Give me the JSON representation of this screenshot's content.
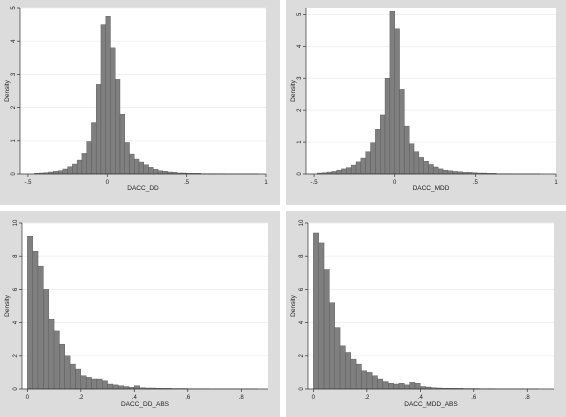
{
  "chart_data": [
    {
      "type": "bar",
      "histogram": true,
      "xlabel": "DACC_DD",
      "ylabel": "Density",
      "xlim": [
        -0.55,
        1.0
      ],
      "ylim": [
        0,
        5
      ],
      "xticks": [
        -0.5,
        0,
        0.5,
        1
      ],
      "xtick_labels": [
        "-.5",
        "0",
        ".5",
        "1"
      ],
      "yticks": [
        0,
        1,
        2,
        3,
        4,
        5
      ],
      "ytick_labels": [
        "0",
        "1",
        "2",
        "3",
        "4",
        "5"
      ],
      "grid": true,
      "bin_width": 0.03,
      "bins": [
        {
          "x0": -0.46,
          "v": 0.02
        },
        {
          "x0": -0.43,
          "v": 0.03
        },
        {
          "x0": -0.4,
          "v": 0.04
        },
        {
          "x0": -0.37,
          "v": 0.06
        },
        {
          "x0": -0.34,
          "v": 0.08
        },
        {
          "x0": -0.31,
          "v": 0.1
        },
        {
          "x0": -0.28,
          "v": 0.15
        },
        {
          "x0": -0.25,
          "v": 0.22
        },
        {
          "x0": -0.22,
          "v": 0.3
        },
        {
          "x0": -0.19,
          "v": 0.42
        },
        {
          "x0": -0.16,
          "v": 0.62
        },
        {
          "x0": -0.13,
          "v": 0.98
        },
        {
          "x0": -0.1,
          "v": 1.55
        },
        {
          "x0": -0.07,
          "v": 2.7
        },
        {
          "x0": -0.04,
          "v": 4.5
        },
        {
          "x0": -0.01,
          "v": 4.75
        },
        {
          "x0": 0.02,
          "v": 3.8
        },
        {
          "x0": 0.05,
          "v": 2.85
        },
        {
          "x0": 0.08,
          "v": 1.8
        },
        {
          "x0": 0.11,
          "v": 0.95
        },
        {
          "x0": 0.14,
          "v": 0.6
        },
        {
          "x0": 0.17,
          "v": 0.45
        },
        {
          "x0": 0.2,
          "v": 0.36
        },
        {
          "x0": 0.23,
          "v": 0.28
        },
        {
          "x0": 0.26,
          "v": 0.2
        },
        {
          "x0": 0.29,
          "v": 0.14
        },
        {
          "x0": 0.32,
          "v": 0.1
        },
        {
          "x0": 0.35,
          "v": 0.08
        },
        {
          "x0": 0.38,
          "v": 0.06
        },
        {
          "x0": 0.41,
          "v": 0.05
        },
        {
          "x0": 0.44,
          "v": 0.03
        },
        {
          "x0": 0.47,
          "v": 0.03
        },
        {
          "x0": 0.5,
          "v": 0.02
        },
        {
          "x0": 0.53,
          "v": 0.02
        },
        {
          "x0": 0.56,
          "v": 0.02
        },
        {
          "x0": 0.59,
          "v": 0.01
        },
        {
          "x0": 0.62,
          "v": 0.01
        },
        {
          "x0": 0.65,
          "v": 0.01
        },
        {
          "x0": 0.68,
          "v": 0.01
        },
        {
          "x0": 0.71,
          "v": 0.01
        },
        {
          "x0": 0.74,
          "v": 0.005
        },
        {
          "x0": 0.77,
          "v": 0.005
        },
        {
          "x0": 0.8,
          "v": 0.005
        },
        {
          "x0": 0.83,
          "v": 0.005
        },
        {
          "x0": 0.86,
          "v": 0.005
        },
        {
          "x0": 0.89,
          "v": 0.005
        },
        {
          "x0": 0.92,
          "v": 0.005
        }
      ]
    },
    {
      "type": "bar",
      "histogram": true,
      "xlabel": "DACC_MDD",
      "ylabel": "Density",
      "xlim": [
        -0.55,
        1.0
      ],
      "ylim": [
        0,
        5.2
      ],
      "xticks": [
        -0.5,
        0,
        0.5,
        1
      ],
      "xtick_labels": [
        "-.5",
        "0",
        ".5",
        "1"
      ],
      "yticks": [
        0,
        1,
        2,
        3,
        4,
        5
      ],
      "ytick_labels": [
        "0",
        "1",
        "2",
        "3",
        "4",
        "5"
      ],
      "grid": true,
      "bin_width": 0.03,
      "bins": [
        {
          "x0": -0.48,
          "v": 0.03
        },
        {
          "x0": -0.45,
          "v": 0.04
        },
        {
          "x0": -0.42,
          "v": 0.06
        },
        {
          "x0": -0.39,
          "v": 0.08
        },
        {
          "x0": -0.36,
          "v": 0.12
        },
        {
          "x0": -0.33,
          "v": 0.16
        },
        {
          "x0": -0.3,
          "v": 0.2
        },
        {
          "x0": -0.27,
          "v": 0.28
        },
        {
          "x0": -0.24,
          "v": 0.38
        },
        {
          "x0": -0.21,
          "v": 0.5
        },
        {
          "x0": -0.18,
          "v": 0.7
        },
        {
          "x0": -0.15,
          "v": 0.98
        },
        {
          "x0": -0.12,
          "v": 1.4
        },
        {
          "x0": -0.09,
          "v": 1.85
        },
        {
          "x0": -0.06,
          "v": 3.0
        },
        {
          "x0": -0.03,
          "v": 5.1
        },
        {
          "x0": 0.0,
          "v": 4.55
        },
        {
          "x0": 0.03,
          "v": 2.65
        },
        {
          "x0": 0.06,
          "v": 1.5
        },
        {
          "x0": 0.09,
          "v": 0.95
        },
        {
          "x0": 0.12,
          "v": 0.7
        },
        {
          "x0": 0.15,
          "v": 0.52
        },
        {
          "x0": 0.18,
          "v": 0.4
        },
        {
          "x0": 0.21,
          "v": 0.3
        },
        {
          "x0": 0.24,
          "v": 0.22
        },
        {
          "x0": 0.27,
          "v": 0.16
        },
        {
          "x0": 0.3,
          "v": 0.12
        },
        {
          "x0": 0.33,
          "v": 0.1
        },
        {
          "x0": 0.36,
          "v": 0.08
        },
        {
          "x0": 0.39,
          "v": 0.07
        },
        {
          "x0": 0.42,
          "v": 0.05
        },
        {
          "x0": 0.45,
          "v": 0.05
        },
        {
          "x0": 0.48,
          "v": 0.04
        },
        {
          "x0": 0.51,
          "v": 0.03
        },
        {
          "x0": 0.54,
          "v": 0.03
        },
        {
          "x0": 0.57,
          "v": 0.02
        },
        {
          "x0": 0.6,
          "v": 0.02
        },
        {
          "x0": 0.63,
          "v": 0.01
        },
        {
          "x0": 0.66,
          "v": 0.01
        },
        {
          "x0": 0.69,
          "v": 0.01
        },
        {
          "x0": 0.72,
          "v": 0.005
        },
        {
          "x0": 0.75,
          "v": 0.005
        },
        {
          "x0": 0.78,
          "v": 0.005
        },
        {
          "x0": 0.81,
          "v": 0.005
        },
        {
          "x0": 0.84,
          "v": 0.005
        },
        {
          "x0": 0.87,
          "v": 0.005
        }
      ]
    },
    {
      "type": "bar",
      "histogram": true,
      "xlabel": "DACC_DD_ABS",
      "ylabel": "Density",
      "xlim": [
        -0.02,
        0.9
      ],
      "ylim": [
        0,
        10
      ],
      "xticks": [
        0,
        0.2,
        0.4,
        0.6,
        0.8
      ],
      "xtick_labels": [
        "0",
        ".2",
        ".4",
        ".6",
        ".8"
      ],
      "yticks": [
        0,
        2,
        4,
        6,
        8,
        10
      ],
      "ytick_labels": [
        "0",
        "2",
        "4",
        "6",
        "8",
        "10"
      ],
      "grid": true,
      "bin_width": 0.02,
      "bins": [
        {
          "x0": 0.0,
          "v": 9.2
        },
        {
          "x0": 0.02,
          "v": 8.3
        },
        {
          "x0": 0.04,
          "v": 7.4
        },
        {
          "x0": 0.06,
          "v": 6.0
        },
        {
          "x0": 0.08,
          "v": 4.2
        },
        {
          "x0": 0.1,
          "v": 3.5
        },
        {
          "x0": 0.12,
          "v": 2.7
        },
        {
          "x0": 0.14,
          "v": 2.0
        },
        {
          "x0": 0.16,
          "v": 1.5
        },
        {
          "x0": 0.18,
          "v": 1.2
        },
        {
          "x0": 0.2,
          "v": 0.8
        },
        {
          "x0": 0.22,
          "v": 0.7
        },
        {
          "x0": 0.24,
          "v": 0.6
        },
        {
          "x0": 0.26,
          "v": 0.6
        },
        {
          "x0": 0.28,
          "v": 0.5
        },
        {
          "x0": 0.3,
          "v": 0.3
        },
        {
          "x0": 0.32,
          "v": 0.25
        },
        {
          "x0": 0.34,
          "v": 0.2
        },
        {
          "x0": 0.36,
          "v": 0.15
        },
        {
          "x0": 0.38,
          "v": 0.1
        },
        {
          "x0": 0.4,
          "v": 0.2
        },
        {
          "x0": 0.42,
          "v": 0.08
        },
        {
          "x0": 0.44,
          "v": 0.06
        },
        {
          "x0": 0.46,
          "v": 0.06
        },
        {
          "x0": 0.48,
          "v": 0.05
        },
        {
          "x0": 0.5,
          "v": 0.04
        },
        {
          "x0": 0.52,
          "v": 0.04
        },
        {
          "x0": 0.54,
          "v": 0.03
        },
        {
          "x0": 0.56,
          "v": 0.03
        },
        {
          "x0": 0.58,
          "v": 0.03
        },
        {
          "x0": 0.6,
          "v": 0.02
        },
        {
          "x0": 0.62,
          "v": 0.02
        },
        {
          "x0": 0.64,
          "v": 0.02
        },
        {
          "x0": 0.66,
          "v": 0.02
        },
        {
          "x0": 0.68,
          "v": 0.01
        },
        {
          "x0": 0.7,
          "v": 0.01
        },
        {
          "x0": 0.72,
          "v": 0.01
        },
        {
          "x0": 0.74,
          "v": 0.01
        },
        {
          "x0": 0.76,
          "v": 0.01
        },
        {
          "x0": 0.78,
          "v": 0.01
        },
        {
          "x0": 0.8,
          "v": 0.01
        },
        {
          "x0": 0.82,
          "v": 0.01
        },
        {
          "x0": 0.84,
          "v": 0.01
        }
      ]
    },
    {
      "type": "bar",
      "histogram": true,
      "xlabel": "DACC_MDD_ABS",
      "ylabel": "Density",
      "xlim": [
        -0.02,
        0.9
      ],
      "ylim": [
        0,
        10
      ],
      "xticks": [
        0,
        0.2,
        0.4,
        0.6,
        0.8
      ],
      "xtick_labels": [
        "0",
        ".2",
        ".4",
        ".6",
        ".8"
      ],
      "yticks": [
        0,
        2,
        4,
        6,
        8,
        10
      ],
      "ytick_labels": [
        "0",
        "2",
        "4",
        "6",
        "8",
        "10"
      ],
      "grid": true,
      "bin_width": 0.02,
      "bins": [
        {
          "x0": 0.0,
          "v": 9.4
        },
        {
          "x0": 0.02,
          "v": 8.8
        },
        {
          "x0": 0.04,
          "v": 7.2
        },
        {
          "x0": 0.06,
          "v": 5.2
        },
        {
          "x0": 0.08,
          "v": 3.7
        },
        {
          "x0": 0.1,
          "v": 2.6
        },
        {
          "x0": 0.12,
          "v": 2.2
        },
        {
          "x0": 0.14,
          "v": 1.8
        },
        {
          "x0": 0.16,
          "v": 1.5
        },
        {
          "x0": 0.18,
          "v": 1.1
        },
        {
          "x0": 0.2,
          "v": 1.0
        },
        {
          "x0": 0.22,
          "v": 0.8
        },
        {
          "x0": 0.24,
          "v": 0.6
        },
        {
          "x0": 0.26,
          "v": 0.45
        },
        {
          "x0": 0.28,
          "v": 0.35
        },
        {
          "x0": 0.3,
          "v": 0.3
        },
        {
          "x0": 0.32,
          "v": 0.35
        },
        {
          "x0": 0.34,
          "v": 0.25
        },
        {
          "x0": 0.36,
          "v": 0.4
        },
        {
          "x0": 0.38,
          "v": 0.35
        },
        {
          "x0": 0.4,
          "v": 0.15
        },
        {
          "x0": 0.42,
          "v": 0.12
        },
        {
          "x0": 0.44,
          "v": 0.08
        },
        {
          "x0": 0.46,
          "v": 0.06
        },
        {
          "x0": 0.48,
          "v": 0.05
        },
        {
          "x0": 0.5,
          "v": 0.05
        },
        {
          "x0": 0.52,
          "v": 0.04
        },
        {
          "x0": 0.54,
          "v": 0.04
        },
        {
          "x0": 0.56,
          "v": 0.03
        },
        {
          "x0": 0.58,
          "v": 0.03
        },
        {
          "x0": 0.6,
          "v": 0.03
        },
        {
          "x0": 0.62,
          "v": 0.02
        },
        {
          "x0": 0.64,
          "v": 0.02
        },
        {
          "x0": 0.66,
          "v": 0.02
        },
        {
          "x0": 0.68,
          "v": 0.01
        },
        {
          "x0": 0.7,
          "v": 0.01
        },
        {
          "x0": 0.72,
          "v": 0.01
        },
        {
          "x0": 0.74,
          "v": 0.01
        },
        {
          "x0": 0.76,
          "v": 0.01
        },
        {
          "x0": 0.78,
          "v": 0.01
        },
        {
          "x0": 0.8,
          "v": 0.01
        },
        {
          "x0": 0.82,
          "v": 0.01
        }
      ]
    }
  ]
}
